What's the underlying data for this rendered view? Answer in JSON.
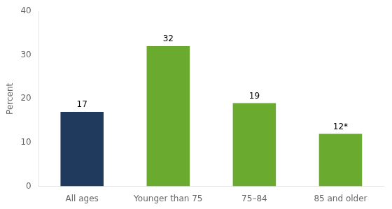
{
  "chart_data": {
    "type": "bar",
    "categories": [
      "All ages",
      "Younger than 75",
      "75–84",
      "85 and older"
    ],
    "values": [
      17,
      32,
      19,
      12
    ],
    "value_labels": [
      "17",
      "32",
      "19",
      "12*"
    ],
    "colors": [
      "#1f3a5c",
      "#6aaa2e",
      "#6aaa2e",
      "#6aaa2e"
    ],
    "ylabel": "Percent",
    "ylim": [
      0,
      40
    ],
    "yticks": [
      0,
      10,
      20,
      30,
      40
    ],
    "grid": false,
    "data_labels": true
  }
}
